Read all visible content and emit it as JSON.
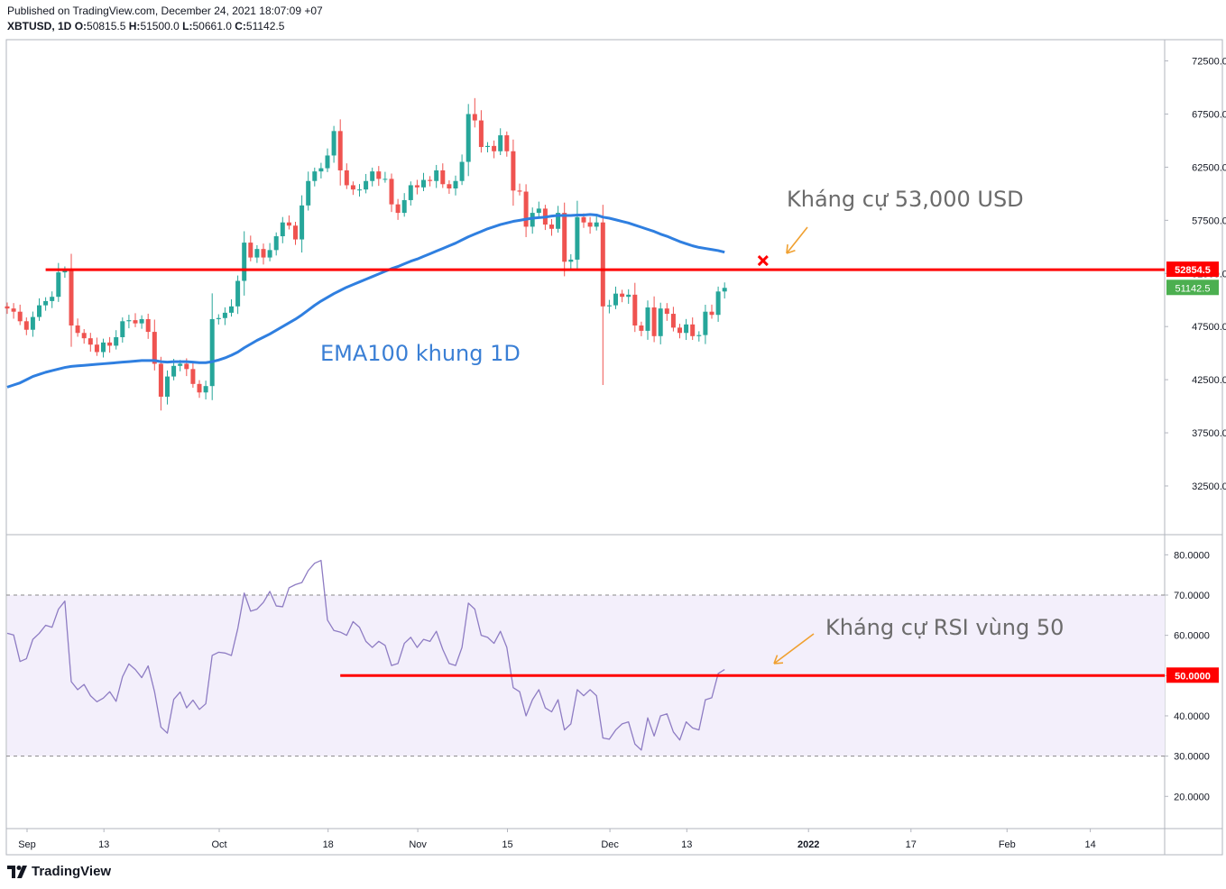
{
  "header": {
    "published": "Published on TradingView.com, December 24, 2021 18:07:09 +07",
    "symbol": "XBTUSD, 1D",
    "o_label": "O:",
    "o_value": "50815.5",
    "h_label": "H:",
    "h_value": "51500.0",
    "l_label": "L:",
    "l_value": "50661.0",
    "c_label": "C:",
    "c_value": "51142.5"
  },
  "brand": {
    "name": "TradingView"
  },
  "colors": {
    "up": "#26a69a",
    "down": "#ef5350",
    "ema": "#2f7fe0",
    "rsi": "#8e7cc3",
    "rsi_band": "#f3effb",
    "resistance": "#ff0000",
    "annotation": "#f0a030",
    "annotation_text": "#6b6b6b",
    "ema_label_text": "#3a7fd5",
    "last_price": "#4caf50"
  },
  "chart_data": [
    {
      "type": "candlestick",
      "title": "XBTUSD, 1D",
      "ylim": [
        28000,
        74500
      ],
      "y_ticks": [
        "72500.0",
        "67500.0",
        "62500.0",
        "57500.0",
        "52500.0",
        "47500.0",
        "42500.0",
        "37500.0",
        "32500.0"
      ],
      "x_ticks": [
        {
          "label": "Sep",
          "day": 0
        },
        {
          "label": "13",
          "day": 12
        },
        {
          "label": "Oct",
          "day": 30
        },
        {
          "label": "18",
          "day": 47
        },
        {
          "label": "Nov",
          "day": 61
        },
        {
          "label": "15",
          "day": 75
        },
        {
          "label": "Dec",
          "day": 91
        },
        {
          "label": "13",
          "day": 103
        },
        {
          "label": "2022",
          "day": 122
        },
        {
          "label": "17",
          "day": 138
        },
        {
          "label": "Feb",
          "day": 153
        },
        {
          "label": "14",
          "day": 166
        }
      ],
      "close": [
        49200,
        48900,
        48000,
        47200,
        48400,
        49500,
        49900,
        50300,
        52600,
        52800,
        47600,
        46900,
        46400,
        45800,
        45100,
        46000,
        45700,
        46500,
        48000,
        48100,
        47800,
        48200,
        47000,
        44000,
        40900,
        42800,
        43800,
        44000,
        43500,
        42100,
        41300,
        41900,
        48200,
        48300,
        48800,
        49400,
        51800,
        55400,
        54000,
        54800,
        54000,
        54700,
        56000,
        57300,
        57000,
        55700,
        58900,
        61200,
        62100,
        62400,
        63600,
        65900,
        62200,
        60800,
        60400,
        60400,
        61200,
        62100,
        61400,
        61400,
        59000,
        58200,
        59400,
        60800,
        60600,
        61300,
        61200,
        62200,
        60900,
        60500,
        61200,
        63000,
        67500,
        66900,
        64400,
        64500,
        64000,
        65500,
        64000,
        60300,
        60200,
        56900,
        58200,
        58600,
        57100,
        56700,
        58200,
        53600,
        53800,
        57800,
        57300,
        56900,
        57300,
        49400,
        49500,
        50600,
        50300,
        50500,
        47600,
        47100,
        49300,
        46600,
        49200,
        48700,
        47400,
        46900,
        47700,
        46600,
        46700,
        48900,
        48600,
        50800,
        51142.5
      ],
      "ema100": [
        41800,
        42000,
        42200,
        42500,
        42800,
        43000,
        43200,
        43350,
        43500,
        43650,
        43750,
        43800,
        43850,
        43900,
        43950,
        44000,
        44050,
        44100,
        44150,
        44200,
        44250,
        44300,
        44300,
        44300,
        44200,
        44150,
        44200,
        44200,
        44200,
        44150,
        44100,
        44100,
        44200,
        44350,
        44550,
        44800,
        45100,
        45500,
        45850,
        46200,
        46500,
        46800,
        47150,
        47500,
        47850,
        48200,
        48600,
        49050,
        49500,
        49900,
        50250,
        50600,
        50900,
        51200,
        51450,
        51700,
        51950,
        52200,
        52450,
        52700,
        52950,
        53150,
        53400,
        53650,
        53850,
        54100,
        54350,
        54600,
        54850,
        55100,
        55350,
        55650,
        55950,
        56200,
        56450,
        56700,
        56900,
        57100,
        57250,
        57400,
        57500,
        57600,
        57700,
        57750,
        57800,
        57900,
        57950,
        57950,
        57950,
        58000,
        58000,
        58050,
        58000,
        57800,
        57700,
        57550,
        57400,
        57250,
        57050,
        56850,
        56650,
        56450,
        56200,
        56000,
        55750,
        55500,
        55300,
        55100,
        54950,
        54850,
        54750,
        54650,
        54500
      ],
      "resistance": {
        "value": 52854.5,
        "label": "52854.5"
      },
      "last_price": {
        "value": 51142.5,
        "label": "51142.5"
      },
      "annotations": {
        "ema": "EMA100 khung 1D",
        "resistance": "Kháng cự 53,000 USD"
      }
    },
    {
      "type": "line",
      "title": "RSI",
      "ylim": [
        12,
        85
      ],
      "y_ticks": [
        "80.0000",
        "70.0000",
        "60.0000",
        "50.0000",
        "40.0000",
        "30.0000",
        "20.0000"
      ],
      "band": [
        30,
        70
      ],
      "values": [
        60.5,
        60.1,
        53.5,
        54.2,
        59.0,
        60.5,
        62.5,
        62.0,
        66.5,
        68.5,
        48.5,
        46.5,
        47.8,
        45.0,
        43.5,
        44.4,
        46.0,
        43.6,
        49.7,
        52.9,
        51.5,
        49.5,
        52.4,
        46.0,
        37.2,
        35.7,
        44.1,
        45.9,
        42.0,
        43.9,
        41.6,
        43.0,
        55.0,
        55.8,
        55.6,
        55.0,
        61.7,
        70.5,
        66.0,
        66.5,
        68.2,
        70.9,
        67.3,
        67.1,
        71.8,
        72.6,
        73.1,
        76.1,
        77.9,
        78.6,
        63.8,
        61.2,
        60.8,
        60.0,
        63.4,
        62.0,
        58.5,
        57.0,
        58.5,
        57.5,
        52.5,
        53.0,
        58.0,
        59.5,
        57.0,
        59.0,
        58.5,
        61.0,
        56.5,
        53.0,
        52.5,
        57.0,
        68.0,
        66.5,
        60.0,
        59.5,
        58.0,
        61.0,
        57.0,
        47.0,
        46.0,
        40.0,
        44.0,
        46.5,
        42.0,
        41.0,
        44.0,
        36.5,
        38.0,
        46.5,
        45.0,
        46.5,
        45.0,
        34.5,
        34.2,
        36.5,
        38.0,
        38.5,
        33.0,
        31.5,
        39.5,
        35.0,
        40.0,
        40.5,
        36.0,
        34.0,
        38.5,
        37.0,
        36.5,
        44.0,
        44.5,
        50.5,
        51.5
      ],
      "level": {
        "value": 50,
        "label": "50.0000",
        "start_day": 52
      },
      "annotations": {
        "rsi": "Kháng cự RSI vùng 50"
      }
    }
  ]
}
